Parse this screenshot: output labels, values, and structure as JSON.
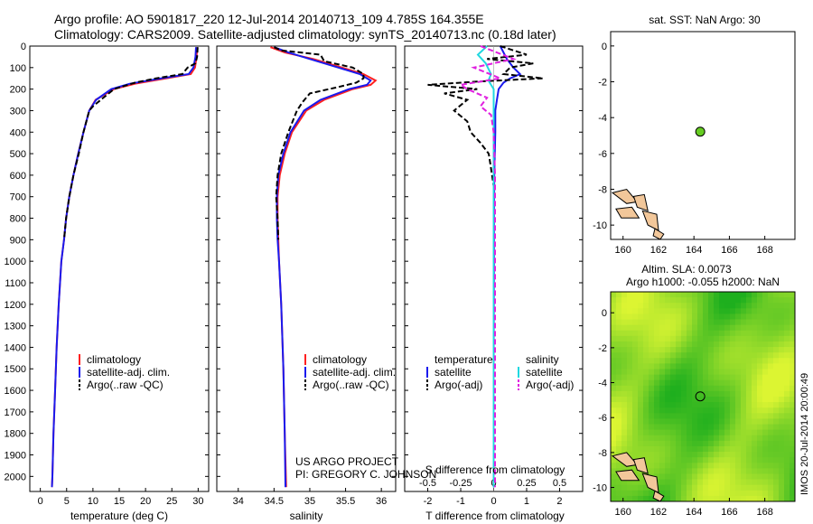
{
  "header": {
    "title_line1": "Argo profile: AO 5901817_220 12-Jul-2014 20140713_109 4.785S 164.355E",
    "title_line2": "Climatology: CARS2009. Satellite-adjusted climatology: synTS_20140713.nc (0.18d later)"
  },
  "colors": {
    "climatology": "#ff2020",
    "satellite": "#1a1aee",
    "argo": "#000000",
    "salinity_satellite": "#20d8e0",
    "salinity_argo": "#e020e0",
    "land": "#f2c79a",
    "marker": "#66cc22"
  },
  "depth_ticks": [
    "0",
    "100",
    "200",
    "300",
    "400",
    "500",
    "600",
    "700",
    "800",
    "900",
    "1000",
    "1100",
    "1200",
    "1300",
    "1400",
    "1500",
    "1600",
    "1700",
    "1800",
    "1900",
    "2000"
  ],
  "chart_data": [
    {
      "type": "line",
      "name": "temperature-profile",
      "xlabel": "temperature (deg C)",
      "ylabel": "",
      "xlim": [
        -2,
        32
      ],
      "ylim": [
        2070,
        0
      ],
      "xticks": [
        "0",
        "5",
        "10",
        "15",
        "20",
        "25",
        "30"
      ],
      "legend": [
        "climatology",
        "satellite-adj. clim.",
        "Argo(..raw -QC)"
      ],
      "series": [
        {
          "name": "climatology",
          "depth": [
            5,
            50,
            100,
            130,
            150,
            175,
            200,
            250,
            300,
            400,
            500,
            600,
            700,
            800,
            900,
            1000,
            1200,
            1400,
            1600,
            1800,
            2000,
            2050
          ],
          "values": [
            29.8,
            29.7,
            29.4,
            28.6,
            24,
            18,
            14,
            10.5,
            9.3,
            8.2,
            7.2,
            6.3,
            5.5,
            4.9,
            4.5,
            4.0,
            3.5,
            3.1,
            2.8,
            2.5,
            2.3,
            2.2
          ]
        },
        {
          "name": "satellite-adj. clim.",
          "depth": [
            5,
            50,
            100,
            130,
            150,
            175,
            200,
            250,
            300,
            400,
            500,
            600,
            700,
            800,
            900,
            1000,
            1200,
            1400,
            1600,
            1800,
            2000,
            2050
          ],
          "values": [
            29.6,
            29.5,
            29.1,
            28.2,
            23,
            17,
            13.5,
            10.6,
            9.3,
            8.2,
            7.2,
            6.3,
            5.5,
            4.9,
            4.5,
            4.0,
            3.5,
            3.1,
            2.8,
            2.5,
            2.3,
            2.2
          ]
        },
        {
          "name": "Argo(..raw -QC)",
          "depth": [
            5,
            50,
            80,
            100,
            130,
            150,
            170,
            200,
            250,
            280,
            300,
            400,
            500,
            600,
            700,
            800,
            900
          ],
          "values": [
            29.9,
            29.8,
            29.5,
            28,
            27,
            22,
            18,
            14,
            11.5,
            10,
            9.3,
            8.2,
            7.3,
            6.3,
            5.5,
            4.9,
            4.5
          ]
        }
      ]
    },
    {
      "type": "line",
      "name": "salinity-profile",
      "xlabel": "salinity",
      "xlim": [
        33.7,
        36.2
      ],
      "ylim": [
        2070,
        0
      ],
      "xticks": [
        "34",
        "34.5",
        "35",
        "35.5",
        "36"
      ],
      "legend": [
        "climatology",
        "satellite-adj. clim.",
        "Argo(..raw -QC)"
      ],
      "series": [
        {
          "name": "climatology",
          "depth": [
            5,
            30,
            60,
            100,
            130,
            160,
            180,
            200,
            250,
            300,
            400,
            500,
            600,
            700,
            800,
            900,
            1000,
            1200,
            1500,
            1800,
            2050
          ],
          "values": [
            34.45,
            34.65,
            35.05,
            35.45,
            35.75,
            35.92,
            35.85,
            35.6,
            35.2,
            34.95,
            34.75,
            34.65,
            34.58,
            34.55,
            34.55,
            34.56,
            34.57,
            34.6,
            34.63,
            34.65,
            34.67
          ]
        },
        {
          "name": "satellite-adj. clim.",
          "depth": [
            5,
            30,
            60,
            100,
            130,
            160,
            180,
            200,
            250,
            300,
            400,
            500,
            600,
            700,
            800,
            900,
            1000,
            1200,
            1500,
            1800,
            2050
          ],
          "values": [
            34.5,
            34.7,
            35.0,
            35.4,
            35.7,
            35.85,
            35.8,
            35.55,
            35.15,
            34.92,
            34.73,
            34.63,
            34.56,
            34.54,
            34.54,
            34.55,
            34.57,
            34.6,
            34.63,
            34.65,
            34.66
          ]
        },
        {
          "name": "Argo(..raw -QC)",
          "depth": [
            5,
            20,
            40,
            70,
            100,
            130,
            150,
            170,
            190,
            220,
            260,
            300,
            400,
            500,
            600,
            700,
            800,
            900
          ],
          "values": [
            34.5,
            34.6,
            35.15,
            35.2,
            35.6,
            35.75,
            35.75,
            35.65,
            35.4,
            35.0,
            34.9,
            34.82,
            34.7,
            34.6,
            34.55,
            34.53,
            34.55,
            34.56
          ]
        }
      ]
    },
    {
      "type": "line",
      "name": "difference-profile",
      "xlabel": "T difference from climatology",
      "xlabel_top": "S difference from climatology",
      "xlim": [
        -2.7,
        2.7
      ],
      "ylim": [
        2070,
        0
      ],
      "xticks_bottom": [
        "-2",
        "-1",
        "0",
        "1",
        "2"
      ],
      "xticks_top": [
        "-0.5",
        "-0.25",
        "0",
        "0.25",
        "0.5"
      ],
      "legend_headers": [
        "temperature",
        "salinity"
      ],
      "legend": [
        "satellite",
        "Argo(-adj)",
        "satellite",
        "Argo(-adj)"
      ],
      "series": [
        {
          "name": "temperature satellite",
          "depth": [
            0,
            60,
            100,
            130,
            150,
            170,
            200,
            250,
            300,
            400,
            600,
            800,
            1000,
            1500,
            2050
          ],
          "values": [
            0.2,
            0.4,
            0.6,
            0.8,
            0.5,
            0.3,
            0.15,
            0.1,
            0.05,
            0.05,
            0.02,
            0.01,
            0.01,
            0.0,
            0.0
          ]
        },
        {
          "name": "temperature Argo(-adj)",
          "depth": [
            0,
            40,
            60,
            80,
            100,
            130,
            150,
            165,
            180,
            200,
            220,
            250,
            300,
            350,
            400,
            450,
            500,
            550,
            600,
            650,
            700,
            800,
            900
          ],
          "values": [
            0.2,
            1.0,
            -0.2,
            1.2,
            0.5,
            0.3,
            1.5,
            -0.5,
            -2.0,
            -0.5,
            -1.5,
            -0.8,
            -1.2,
            -0.8,
            -0.7,
            -0.4,
            -0.15,
            -0.1,
            -0.05,
            0.0,
            0.0,
            0.0,
            0.0
          ]
        },
        {
          "name": "salinity satellite",
          "depth": [
            0,
            40,
            80,
            130,
            160,
            200,
            300,
            500,
            1000,
            2050
          ],
          "values": [
            -0.05,
            -0.12,
            -0.06,
            -0.02,
            -0.04,
            0.0,
            0.0,
            0.0,
            0.0,
            0.0
          ]
        },
        {
          "name": "salinity Argo(-adj)",
          "depth": [
            0,
            60,
            100,
            150,
            180,
            200,
            240,
            280,
            320,
            400,
            600,
            1000,
            2050
          ],
          "values": [
            -0.1,
            0.15,
            -0.15,
            0.05,
            -0.25,
            -0.2,
            -0.05,
            -0.1,
            -0.02,
            0.0,
            0.01,
            0.01,
            0.01
          ]
        }
      ]
    },
    {
      "type": "scatter",
      "name": "sst-map",
      "title": "sat. SST: NaN Argo: 30",
      "xlim": [
        159.3,
        169.7
      ],
      "ylim": [
        -10.8,
        0.8
      ],
      "xticks": [
        "160",
        "162",
        "164",
        "166",
        "168"
      ],
      "yticks": [
        "0",
        "-2",
        "-4",
        "-6",
        "-8",
        "-10"
      ],
      "points": [
        {
          "x": 164.355,
          "y": -4.785
        }
      ]
    },
    {
      "type": "heatmap",
      "name": "sla-map",
      "title_line1": "Altim. SLA: 0.0073",
      "title_line2": "Argo h1000: -0.055 h2000: NaN",
      "xlim": [
        159.3,
        169.7
      ],
      "ylim": [
        -10.8,
        1.2
      ],
      "xticks": [
        "160",
        "162",
        "164",
        "166",
        "168"
      ],
      "yticks": [
        "0",
        "-2",
        "-4",
        "-6",
        "-8",
        "-10"
      ],
      "points": [
        {
          "x": 164.355,
          "y": -4.785
        }
      ]
    }
  ],
  "annotations": {
    "project_line1": "US ARGO PROJECT",
    "project_line2": "PI: GREGORY C. JOHNSON",
    "timestamp": "IMOS 20-Jul-2014 20:00:49"
  }
}
